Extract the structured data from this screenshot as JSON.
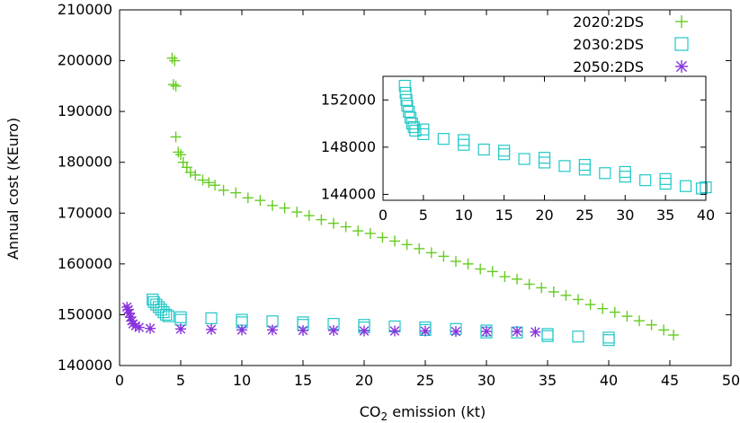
{
  "chart_data": [
    {
      "type": "scatter",
      "xlabel": "CO",
      "xlabel_sub": "2",
      "xlabel_rest": " emission (kt)",
      "ylabel": "Annual cost (KEuro)",
      "xlim": [
        0,
        50
      ],
      "ylim": [
        140000,
        210000
      ],
      "xticks": [
        0,
        5,
        10,
        15,
        20,
        25,
        30,
        35,
        40,
        45,
        50
      ],
      "yticks": [
        140000,
        150000,
        160000,
        170000,
        180000,
        190000,
        200000,
        210000
      ],
      "legend_position": "top-right",
      "series": [
        {
          "name": "2020:2DS",
          "marker": "plus",
          "color": "#66cc22",
          "points": [
            [
              4.3,
              200500
            ],
            [
              4.5,
              200000
            ],
            [
              4.4,
              195300
            ],
            [
              4.6,
              195000
            ],
            [
              4.6,
              185000
            ],
            [
              4.8,
              182000
            ],
            [
              5.0,
              181500
            ],
            [
              5.2,
              180000
            ],
            [
              5.5,
              179000
            ],
            [
              5.8,
              178000
            ],
            [
              6.2,
              177500
            ],
            [
              6.8,
              176500
            ],
            [
              7.3,
              176000
            ],
            [
              7.8,
              175500
            ],
            [
              8.5,
              174500
            ],
            [
              9.5,
              174000
            ],
            [
              10.5,
              173000
            ],
            [
              11.5,
              172500
            ],
            [
              12.5,
              171500
            ],
            [
              13.5,
              171000
            ],
            [
              14.5,
              170200
            ],
            [
              15.5,
              169500
            ],
            [
              16.5,
              168700
            ],
            [
              17.5,
              168000
            ],
            [
              18.5,
              167300
            ],
            [
              19.5,
              166500
            ],
            [
              20.5,
              166000
            ],
            [
              21.5,
              165200
            ],
            [
              22.5,
              164500
            ],
            [
              23.5,
              163800
            ],
            [
              24.5,
              163000
            ],
            [
              25.5,
              162200
            ],
            [
              26.5,
              161500
            ],
            [
              27.5,
              160500
            ],
            [
              28.5,
              160000
            ],
            [
              29.5,
              159000
            ],
            [
              30.5,
              158500
            ],
            [
              31.5,
              157500
            ],
            [
              32.5,
              157000
            ],
            [
              33.5,
              156000
            ],
            [
              34.5,
              155300
            ],
            [
              35.5,
              154500
            ],
            [
              36.5,
              153800
            ],
            [
              37.5,
              153000
            ],
            [
              38.5,
              152000
            ],
            [
              39.5,
              151200
            ],
            [
              40.5,
              150500
            ],
            [
              41.5,
              149700
            ],
            [
              42.5,
              148800
            ],
            [
              43.5,
              148000
            ],
            [
              44.5,
              147000
            ],
            [
              45.3,
              146000
            ]
          ]
        },
        {
          "name": "2030:2DS",
          "marker": "square",
          "color": "#22c8c8",
          "points": [
            [
              2.7,
              153000
            ],
            [
              2.8,
              152500
            ],
            [
              3.0,
              152000
            ],
            [
              3.2,
              151500
            ],
            [
              3.4,
              151000
            ],
            [
              3.6,
              150500
            ],
            [
              3.8,
              150000
            ],
            [
              4.0,
              149700
            ],
            [
              5.0,
              149500
            ],
            [
              7.5,
              149300
            ],
            [
              10.0,
              149000
            ],
            [
              12.5,
              148700
            ],
            [
              15.0,
              148500
            ],
            [
              17.5,
              148200
            ],
            [
              20.0,
              148000
            ],
            [
              22.5,
              147700
            ],
            [
              25.0,
              147500
            ],
            [
              27.5,
              147200
            ],
            [
              30.0,
              146900
            ],
            [
              32.5,
              146500
            ],
            [
              35.0,
              146200
            ],
            [
              37.5,
              145700
            ],
            [
              40.0,
              145000
            ],
            [
              5.0,
              149000
            ],
            [
              10.0,
              148500
            ],
            [
              15.0,
              148000
            ],
            [
              20.0,
              147500
            ],
            [
              25.0,
              147000
            ],
            [
              30.0,
              146500
            ],
            [
              35.0,
              145800
            ],
            [
              40.0,
              145500
            ]
          ]
        },
        {
          "name": "2050:2DS",
          "marker": "star",
          "color": "#8833dd",
          "points": [
            [
              0.6,
              151500
            ],
            [
              0.7,
              151000
            ],
            [
              0.8,
              150300
            ],
            [
              0.9,
              149500
            ],
            [
              1.0,
              148800
            ],
            [
              1.1,
              148200
            ],
            [
              1.3,
              147800
            ],
            [
              1.6,
              147500
            ],
            [
              2.5,
              147300
            ],
            [
              5.0,
              147200
            ],
            [
              7.5,
              147100
            ],
            [
              10.0,
              147000
            ],
            [
              12.5,
              147000
            ],
            [
              15.0,
              146900
            ],
            [
              17.5,
              146900
            ],
            [
              20.0,
              146800
            ],
            [
              22.5,
              146800
            ],
            [
              25.0,
              146800
            ],
            [
              27.5,
              146700
            ],
            [
              30.0,
              146700
            ],
            [
              32.5,
              146700
            ],
            [
              34.0,
              146600
            ]
          ]
        }
      ]
    },
    {
      "type": "scatter",
      "role": "inset",
      "xlim": [
        0,
        40
      ],
      "ylim": [
        143500,
        154000
      ],
      "xticks": [
        0,
        5,
        10,
        15,
        20,
        25,
        30,
        35,
        40
      ],
      "yticks": [
        144000,
        148000,
        152000
      ],
      "series": [
        {
          "marker": "square",
          "color": "#22c8c8",
          "points": [
            [
              2.7,
              153200
            ],
            [
              2.8,
              152600
            ],
            [
              2.9,
              152000
            ],
            [
              3.0,
              151500
            ],
            [
              3.2,
              151000
            ],
            [
              3.4,
              150500
            ],
            [
              3.6,
              150000
            ],
            [
              3.8,
              149700
            ],
            [
              4.0,
              149400
            ],
            [
              5.0,
              149100
            ],
            [
              7.5,
              148700
            ],
            [
              10.0,
              148200
            ],
            [
              12.5,
              147800
            ],
            [
              15.0,
              147400
            ],
            [
              17.5,
              147000
            ],
            [
              20.0,
              146700
            ],
            [
              22.5,
              146400
            ],
            [
              25.0,
              146100
            ],
            [
              27.5,
              145800
            ],
            [
              30.0,
              145500
            ],
            [
              32.5,
              145200
            ],
            [
              35.0,
              144900
            ],
            [
              37.5,
              144700
            ],
            [
              39.5,
              144500
            ],
            [
              5.0,
              149500
            ],
            [
              10.0,
              148600
            ],
            [
              15.0,
              147700
            ],
            [
              20.0,
              147100
            ],
            [
              25.0,
              146500
            ],
            [
              30.0,
              145900
            ],
            [
              35.0,
              145300
            ],
            [
              40.0,
              144600
            ]
          ]
        }
      ]
    }
  ]
}
